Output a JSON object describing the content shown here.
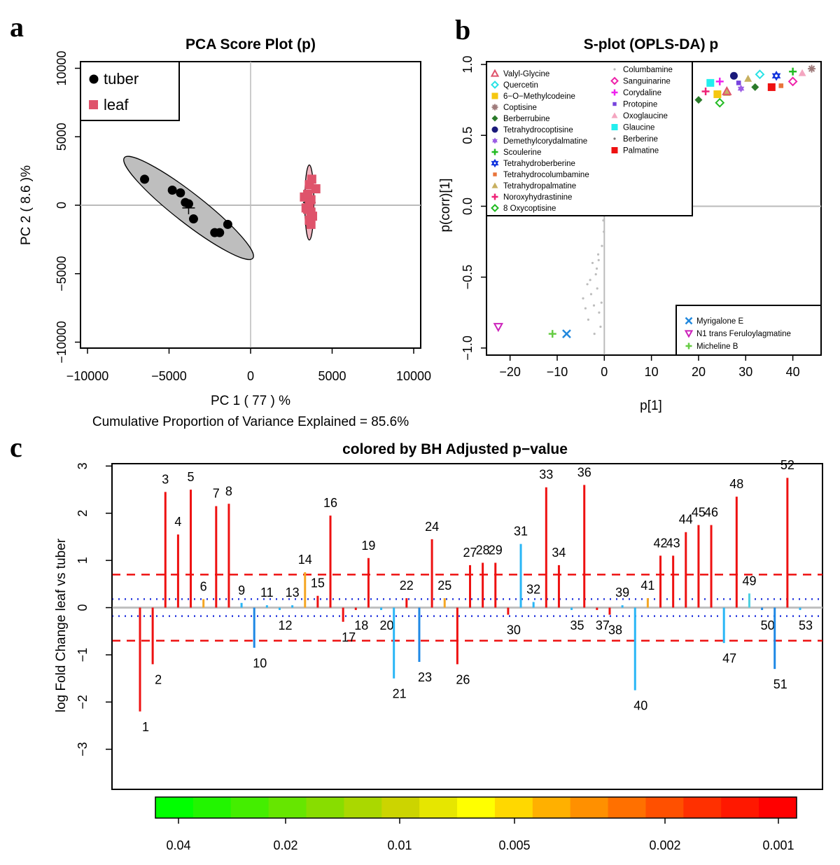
{
  "panels": {
    "a": "a",
    "b": "b",
    "c": "c"
  },
  "chart_data": [
    {
      "type": "scatter",
      "title": "PCA Score Plot (p)",
      "xlabel": "PC 1 ( 77 ) %",
      "ylabel": "PC 2 ( 8.6 )%",
      "note": "Cumulative Proportion of Variance Explained = 85.6%",
      "xlim": [
        -10000,
        10000
      ],
      "ylim": [
        -10000,
        10000
      ],
      "xticks": [
        "−10000",
        "−5000",
        "0",
        "5000",
        "10000"
      ],
      "yticks": [
        "−10000",
        "−5000",
        "0",
        "5000",
        "10000"
      ],
      "legend_position": "top-left",
      "series": [
        {
          "name": "tuber",
          "color": "#000000",
          "marker": "circle",
          "points": [
            [
              -6500,
              1900
            ],
            [
              -4800,
              1100
            ],
            [
              -4300,
              900
            ],
            [
              -4000,
              200
            ],
            [
              -3800,
              100
            ],
            [
              -3500,
              -1000
            ],
            [
              -2200,
              -2000
            ],
            [
              -1900,
              -2000
            ],
            [
              -1400,
              -1400
            ]
          ]
        },
        {
          "name": "leaf",
          "color": "#df536b",
          "marker": "square",
          "points": [
            [
              3300,
              600
            ],
            [
              3500,
              -300
            ],
            [
              3600,
              1500
            ],
            [
              3700,
              -1400
            ],
            [
              3600,
              0
            ],
            [
              3800,
              -800
            ],
            [
              4000,
              1200
            ],
            [
              3400,
              -200
            ],
            [
              3700,
              400
            ],
            [
              3500,
              800
            ],
            [
              3700,
              -500
            ],
            [
              3600,
              -1100
            ],
            [
              3750,
              1900
            ]
          ]
        }
      ],
      "ellipses": [
        {
          "group": "tuber",
          "fill": "#bebebe",
          "center": [
            -3800,
            -200
          ],
          "semi_major": 5000,
          "semi_minor": 900,
          "angle_deg": 38
        },
        {
          "group": "leaf",
          "fill": "#f0b7c1",
          "center": [
            3600,
            200
          ],
          "semi_major": 2300,
          "semi_minor": 280,
          "angle_deg": 90
        }
      ]
    },
    {
      "type": "scatter",
      "title": "S-plot (OPLS-DA) p",
      "xlabel": "p[1]",
      "ylabel": "p(corr)[1]",
      "xlim": [
        -25,
        46
      ],
      "ylim": [
        -1.05,
        1.02
      ],
      "xticks": [
        "−20",
        "−10",
        "0",
        "10",
        "20",
        "30",
        "40"
      ],
      "yticks": [
        "−1.0",
        "−0.5",
        "0.0",
        "0.5",
        "1.0"
      ],
      "legend_upper_col1": [
        {
          "name": "Valyl-Glycine",
          "color": "#df536b",
          "marker": "triangle-open"
        },
        {
          "name": "Quercetin",
          "color": "#28e2e5",
          "marker": "diamond-open"
        },
        {
          "name": "6−O−Methylcodeine",
          "color": "#f5c710",
          "marker": "square"
        },
        {
          "name": "Coptisine",
          "color": "#9e7a7a",
          "marker": "asterisk"
        },
        {
          "name": "Berberrubine",
          "color": "#2a7a2a",
          "marker": "diamond"
        },
        {
          "name": "Tetrahydrocoptisine",
          "color": "#1a1a7a",
          "marker": "circle"
        },
        {
          "name": "Demethylcorydalmatine",
          "color": "#9b5de5",
          "marker": "star6"
        },
        {
          "name": "Scoulerine",
          "color": "#22bb22",
          "marker": "plus"
        },
        {
          "name": "Tetrahydroberberine",
          "color": "#1133dd",
          "marker": "star6-open"
        },
        {
          "name": "Tetrahydrocolumbamine",
          "color": "#e8743b",
          "marker": "small-square"
        },
        {
          "name": "Tetrahydropalmatine",
          "color": "#c8b060",
          "marker": "triangle"
        },
        {
          "name": "Noroxyhydrastinine",
          "color": "#ee2277",
          "marker": "plus"
        },
        {
          "name": "8 Oxycoptisine",
          "color": "#22bb22",
          "marker": "diamond-open"
        }
      ],
      "legend_upper_col2": [
        {
          "name": "Columbamine",
          "color": "#bbbbbb",
          "marker": "dot"
        },
        {
          "name": "Sanguinarine",
          "color": "#ee22aa",
          "marker": "diamond-open"
        },
        {
          "name": "Corydaline",
          "color": "#ee22ee",
          "marker": "plus"
        },
        {
          "name": "Protopine",
          "color": "#7744dd",
          "marker": "small-square"
        },
        {
          "name": "Oxoglaucine",
          "color": "#f4a6c0",
          "marker": "triangle"
        },
        {
          "name": "Glaucine",
          "color": "#22eeee",
          "marker": "square"
        },
        {
          "name": "Berberine",
          "color": "#777777",
          "marker": "dot"
        },
        {
          "name": "Palmatine",
          "color": "#ee1111",
          "marker": "square"
        }
      ],
      "legend_lower": [
        {
          "name": "Myrigalone E",
          "color": "#2288dd",
          "marker": "x"
        },
        {
          "name": "N1 trans Feruloylagmatine",
          "color": "#cc22bb",
          "marker": "triangle-down-open"
        },
        {
          "name": "Micheline B",
          "color": "#66cc44",
          "marker": "plus"
        }
      ],
      "highlight_points": [
        {
          "name": "Berberrubine",
          "x": 20,
          "y": 0.75
        },
        {
          "name": "8 Oxycoptisine",
          "x": 24.5,
          "y": 0.73
        },
        {
          "name": "Noroxyhydrastinine",
          "x": 21.5,
          "y": 0.81
        },
        {
          "name": "6−O−Methylcodeine",
          "x": 24,
          "y": 0.79
        },
        {
          "name": "Tetrahydropalmatine",
          "x": 26,
          "y": 0.8
        },
        {
          "name": "Valyl-Glycine",
          "x": 26,
          "y": 0.81
        },
        {
          "name": "Glaucine",
          "x": 22.5,
          "y": 0.87
        },
        {
          "name": "Corydaline",
          "x": 24.5,
          "y": 0.88
        },
        {
          "name": "Tetrahydrocoptisine",
          "x": 27.5,
          "y": 0.92
        },
        {
          "name": "Protopine",
          "x": 28.5,
          "y": 0.87
        },
        {
          "name": "Demethylcorydalmatine",
          "x": 29,
          "y": 0.83
        },
        {
          "name": "Tetrahydropalmatine",
          "x": 30.5,
          "y": 0.9
        },
        {
          "name": "Berberrubine",
          "x": 32,
          "y": 0.84
        },
        {
          "name": "Quercetin",
          "x": 33,
          "y": 0.93
        },
        {
          "name": "Palmatine",
          "x": 35.5,
          "y": 0.84
        },
        {
          "name": "Tetrahydroberberine",
          "x": 36.5,
          "y": 0.92
        },
        {
          "name": "Tetrahydrocolumbamine",
          "x": 37.5,
          "y": 0.85
        },
        {
          "name": "Scoulerine",
          "x": 40,
          "y": 0.95
        },
        {
          "name": "Sanguinarine",
          "x": 40,
          "y": 0.88
        },
        {
          "name": "Oxoglaucine",
          "x": 42,
          "y": 0.94
        },
        {
          "name": "Coptisine",
          "x": 44,
          "y": 0.97
        },
        {
          "name": "N1 trans Feruloylagmatine",
          "x": -22.5,
          "y": -0.85
        },
        {
          "name": "Micheline B",
          "x": -11,
          "y": -0.9
        },
        {
          "name": "Myrigalone E",
          "x": -8,
          "y": -0.9
        }
      ],
      "background_points": [
        [
          -0.2,
          0.8
        ],
        [
          0.3,
          0.65
        ],
        [
          -0.3,
          0.55
        ],
        [
          0.1,
          0.45
        ],
        [
          -0.2,
          0.38
        ],
        [
          0.2,
          0.3
        ],
        [
          -0.1,
          0.22
        ],
        [
          0.1,
          0.15
        ],
        [
          -0.1,
          0.08
        ],
        [
          0.15,
          -0.02
        ],
        [
          -0.2,
          -0.1
        ],
        [
          -0.1,
          -0.18
        ],
        [
          -0.5,
          -0.28
        ],
        [
          -1.2,
          -0.38
        ],
        [
          -2.5,
          -0.4
        ],
        [
          -1.8,
          -0.48
        ],
        [
          -3,
          -0.52
        ],
        [
          -1.5,
          -0.58
        ],
        [
          -4.5,
          -0.65
        ],
        [
          -2.2,
          -0.7
        ],
        [
          -1.1,
          -0.75
        ],
        [
          -3.4,
          -0.8
        ],
        [
          -0.8,
          -0.85
        ],
        [
          -2.8,
          -0.62
        ],
        [
          -1.6,
          -0.44
        ],
        [
          -0.6,
          -0.68
        ],
        [
          -3.6,
          -0.55
        ],
        [
          -2.1,
          -0.9
        ],
        [
          -4,
          -0.72
        ],
        [
          -1.3,
          -0.34
        ]
      ]
    },
    {
      "type": "bar",
      "title": "colored by BH Adjusted p−value",
      "ylabel": "log Fold Change leaf vs tuber",
      "ylim": [
        -3.85,
        3.05
      ],
      "yticks": [
        "−3",
        "−2",
        "−1",
        "0",
        "1",
        "2",
        "3"
      ],
      "threshold_lines": {
        "red_dashed": [
          0.7,
          -0.7
        ],
        "blue_dotted": [
          0.18,
          -0.18
        ]
      },
      "categories": [
        "1",
        "2",
        "3",
        "4",
        "5",
        "6",
        "7",
        "8",
        "9",
        "10",
        "11",
        "12",
        "13",
        "14",
        "15",
        "16",
        "17",
        "18",
        "19",
        "20",
        "21",
        "22",
        "23",
        "24",
        "25",
        "26",
        "27",
        "28",
        "29",
        "30",
        "31",
        "32",
        "33",
        "34",
        "35",
        "36",
        "37",
        "38",
        "39",
        "40",
        "41",
        "42",
        "43",
        "44",
        "45",
        "46",
        "47",
        "48",
        "49",
        "50",
        "51",
        "52",
        "53"
      ],
      "values": [
        -2.2,
        -1.2,
        2.45,
        1.55,
        2.5,
        0.18,
        2.15,
        2.2,
        0.1,
        -0.85,
        0.05,
        -0.05,
        0.05,
        0.75,
        0.25,
        1.95,
        -0.3,
        -0.05,
        1.05,
        -0.05,
        -1.5,
        0.2,
        -1.15,
        1.45,
        0.2,
        -1.2,
        0.9,
        0.95,
        0.95,
        -0.15,
        1.35,
        0.12,
        2.55,
        0.9,
        -0.05,
        2.6,
        -0.05,
        -0.15,
        0.05,
        -1.75,
        0.2,
        1.1,
        1.1,
        1.6,
        1.75,
        1.75,
        -0.75,
        2.35,
        0.3,
        -0.05,
        -1.3,
        2.75,
        -0.05
      ],
      "colors": [
        "#ee1111",
        "#ee1111",
        "#ee1111",
        "#ee1111",
        "#ee1111",
        "#f5a623",
        "#ee1111",
        "#ee1111",
        "#29b6f6",
        "#1e88e5",
        "#29b6f6",
        "#29b6f6",
        "#29b6f6",
        "#f5a623",
        "#ee1111",
        "#ee1111",
        "#ee1111",
        "#ee1111",
        "#ee1111",
        "#29b6f6",
        "#29b6f6",
        "#ee1111",
        "#1e88e5",
        "#ee1111",
        "#f5a623",
        "#ee1111",
        "#ee1111",
        "#ee1111",
        "#ee1111",
        "#ee1111",
        "#29b6f6",
        "#29b6f6",
        "#ee1111",
        "#ee1111",
        "#29b6f6",
        "#ee1111",
        "#ee1111",
        "#ee1111",
        "#29b6f6",
        "#29b6f6",
        "#f5a623",
        "#ee1111",
        "#ee1111",
        "#ee1111",
        "#ee1111",
        "#ee1111",
        "#29b6f6",
        "#ee1111",
        "#4dd0e1",
        "#1e88e5",
        "#1e88e5",
        "#ee1111",
        "#29b6f6"
      ],
      "colorbar": {
        "labels": [
          "0.04",
          "0.02",
          "0.01",
          "0.005",
          "0.002",
          "0.001"
        ],
        "colors": [
          "#00ff00",
          "#22f500",
          "#44ee00",
          "#66e600",
          "#88dd00",
          "#aad800",
          "#ccd400",
          "#e6e600",
          "#ffff00",
          "#ffd800",
          "#ffb000",
          "#ff9000",
          "#ff7000",
          "#ff5000",
          "#ff3000",
          "#ff1800",
          "#ff0000"
        ]
      }
    }
  ]
}
